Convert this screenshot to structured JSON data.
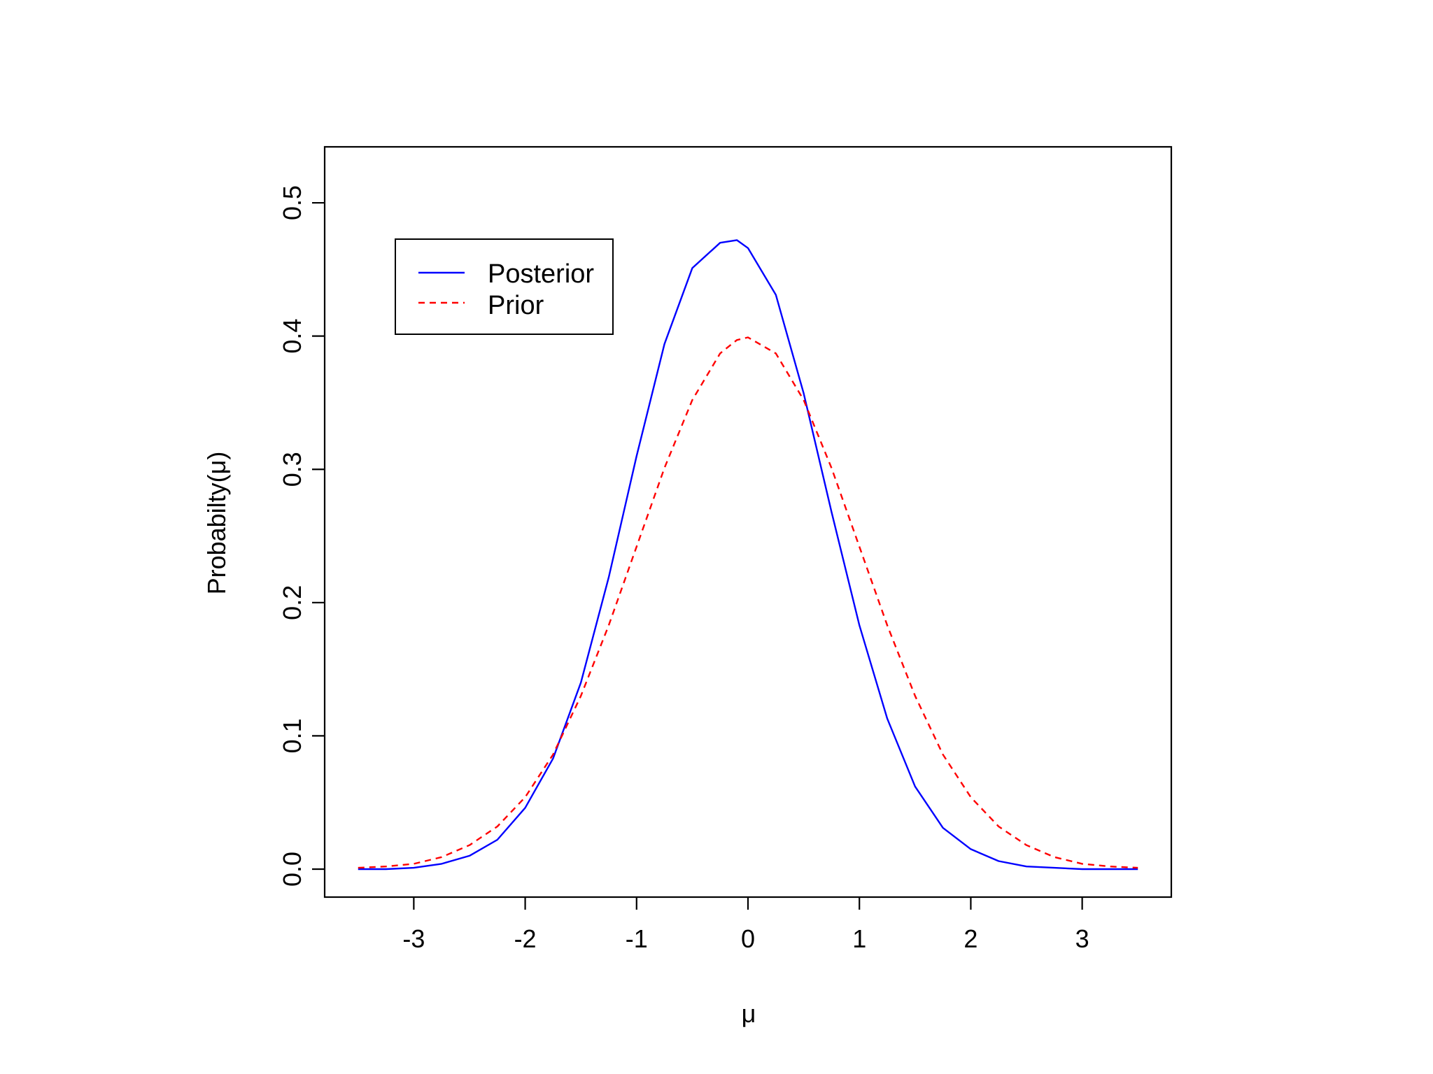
{
  "chart_data": {
    "type": "line",
    "title": "",
    "xlabel": "μ",
    "ylabel": "Probabilty(μ)",
    "xlim": [
      -3.8,
      3.8
    ],
    "ylim": [
      -0.021,
      0.542
    ],
    "x_ticks": [
      -3,
      -2,
      -1,
      0,
      1,
      2,
      3
    ],
    "x_tick_labels": [
      "-3",
      "-2",
      "-1",
      "0",
      "1",
      "2",
      "3"
    ],
    "y_ticks": [
      0.0,
      0.1,
      0.2,
      0.3,
      0.4,
      0.5
    ],
    "y_tick_labels": [
      "0.0",
      "0.1",
      "0.2",
      "0.3",
      "0.4",
      "0.5"
    ],
    "grid": false,
    "legend_position": "top-left",
    "x": [
      -3.5,
      -3.25,
      -3.0,
      -2.75,
      -2.5,
      -2.25,
      -2.0,
      -1.75,
      -1.5,
      -1.25,
      -1.0,
      -0.75,
      -0.5,
      -0.25,
      -0.1,
      0.0,
      0.25,
      0.5,
      0.75,
      1.0,
      1.25,
      1.5,
      1.75,
      2.0,
      2.25,
      2.5,
      2.75,
      3.0,
      3.25,
      3.5
    ],
    "series": [
      {
        "name": "Posterior",
        "color": "#0000ff",
        "line_style": "solid",
        "values": [
          0.0,
          0.0,
          0.001,
          0.004,
          0.01,
          0.022,
          0.046,
          0.083,
          0.14,
          0.219,
          0.31,
          0.394,
          0.451,
          0.47,
          0.472,
          0.466,
          0.431,
          0.357,
          0.268,
          0.183,
          0.113,
          0.062,
          0.031,
          0.015,
          0.006,
          0.002,
          0.001,
          0.0,
          0.0,
          0.0
        ]
      },
      {
        "name": "Prior",
        "color": "#ff0000",
        "line_style": "dashed",
        "values": [
          0.001,
          0.002,
          0.004,
          0.009,
          0.018,
          0.032,
          0.054,
          0.086,
          0.13,
          0.183,
          0.242,
          0.301,
          0.352,
          0.387,
          0.397,
          0.399,
          0.387,
          0.352,
          0.301,
          0.242,
          0.183,
          0.13,
          0.086,
          0.054,
          0.032,
          0.018,
          0.009,
          0.004,
          0.002,
          0.001
        ]
      }
    ]
  }
}
